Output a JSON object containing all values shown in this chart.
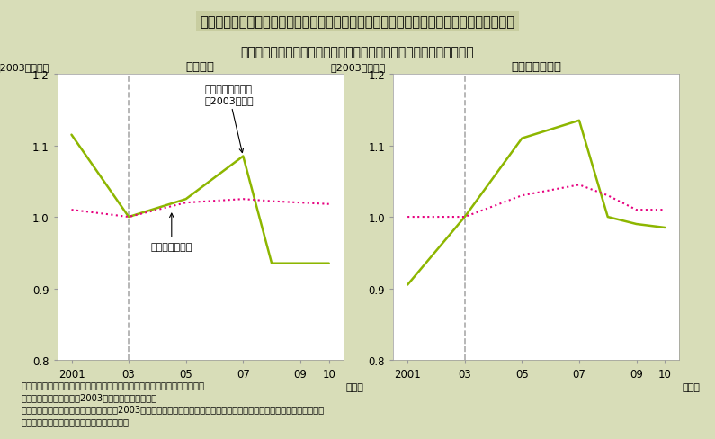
{
  "title_main": "第２－３－９図　非製造業における海外進出開始企業と非進出企業の国内従業員数の比較",
  "subtitle": "海外進出開始企業は非開始企業に比べて国内従業員数が増加する傾向",
  "bg_outer": "#d8ddb8",
  "bg_inner": "#ffffff",
  "left_panel_title": "非製造業",
  "right_panel_title": "（参考）製造業",
  "ylabel": "（2003年＝１）",
  "xlabel": "（年）",
  "ylim": [
    0.8,
    1.2
  ],
  "yticks": [
    0.8,
    0.9,
    1.0,
    1.1,
    1.2
  ],
  "xticks": [
    2001,
    2003,
    2005,
    2007,
    2009,
    2010
  ],
  "xticklabels": [
    "2001",
    "03",
    "05",
    "07",
    "09",
    "10"
  ],
  "vline_x": 2003,
  "left_green_x": [
    2001,
    2003,
    2005,
    2007,
    2008,
    2009,
    2010
  ],
  "left_green_y": [
    1.115,
    1.0,
    1.025,
    1.085,
    0.935,
    0.935,
    0.935
  ],
  "left_pink_x": [
    2001,
    2003,
    2005,
    2007,
    2008,
    2009,
    2010
  ],
  "left_pink_y": [
    1.01,
    1.0,
    1.02,
    1.025,
    1.022,
    1.02,
    1.018
  ],
  "right_green_x": [
    2001,
    2003,
    2005,
    2007,
    2008,
    2009,
    2010
  ],
  "right_green_y": [
    0.905,
    1.0,
    1.11,
    1.135,
    1.0,
    0.99,
    0.985
  ],
  "right_pink_x": [
    2001,
    2003,
    2005,
    2007,
    2008,
    2009,
    2010
  ],
  "right_pink_y": [
    1.0,
    1.0,
    1.03,
    1.045,
    1.03,
    1.01,
    1.01
  ],
  "green_color": "#8db600",
  "pink_color": "#e6007f",
  "vline_color": "#aaaaaa",
  "label_kaigai_start": "海外進出開始企業\n（2003年～）",
  "label_kaigai_non": "海外非進出企業",
  "notes": [
    "（備考）　１．経済産業省「企業活動基本調査」の個票データにより作成。",
    "　　　　　２．それぞれ2003年を１としたきの値。",
    "　　　　　３．海外進出開始企業とは、2003年に海外進出を開始した企業のこと、海外非進出企業とは海外進出を実施し",
    "　　　　　　　ていない企業のことを指す。"
  ]
}
